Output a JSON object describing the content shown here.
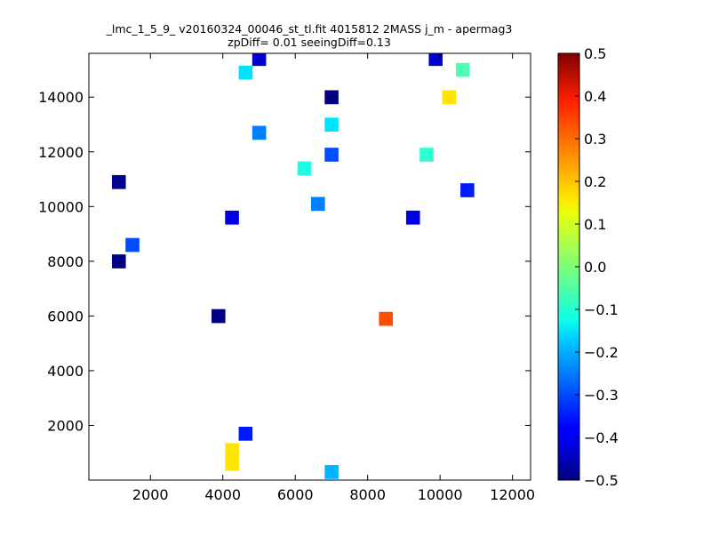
{
  "chart_data": {
    "type": "heatmap",
    "title_line1": "_lmc_1_5_9_ v20160324_00046_st_tl.fit 4015812 2MASS j_m - apermag3",
    "title_line2": "zpDiff= 0.01 seeingDiff=0.13",
    "xlabel": "",
    "ylabel": "",
    "colormap": "jet",
    "xlim": [
      300,
      12500
    ],
    "ylim": [
      0,
      15600
    ],
    "bin_width": 375,
    "bin_height": 500,
    "x_ticks": [
      2000,
      4000,
      6000,
      8000,
      10000,
      12000
    ],
    "x_tick_labels": [
      "2000",
      "4000",
      "6000",
      "8000",
      "10000",
      "12000"
    ],
    "y_ticks": [
      2000,
      4000,
      6000,
      8000,
      10000,
      12000,
      14000
    ],
    "y_tick_labels": [
      "2000",
      "4000",
      "6000",
      "8000",
      "10000",
      "12000",
      "14000"
    ],
    "colorbar": {
      "vmin": -0.5,
      "vmax": 0.5,
      "ticks": [
        -0.5,
        -0.4,
        -0.3,
        -0.2,
        -0.1,
        0.0,
        0.1,
        0.2,
        0.3,
        0.4,
        0.5
      ],
      "tick_labels": [
        "−0.5",
        "−0.4",
        "−0.3",
        "−0.2",
        "−0.1",
        "0.0",
        "0.1",
        "0.2",
        "0.3",
        "0.4",
        "0.5"
      ]
    },
    "cells": [
      {
        "x": 1125,
        "y": 10900,
        "v": -0.48
      },
      {
        "x": 1125,
        "y": 8000,
        "v": -0.5
      },
      {
        "x": 1500,
        "y": 8600,
        "v": -0.3
      },
      {
        "x": 3875,
        "y": 6000,
        "v": -0.5
      },
      {
        "x": 4250,
        "y": 9600,
        "v": -0.4
      },
      {
        "x": 4625,
        "y": 14900,
        "v": -0.15
      },
      {
        "x": 5000,
        "y": 12700,
        "v": -0.25
      },
      {
        "x": 5000,
        "y": 15400,
        "v": -0.42
      },
      {
        "x": 6625,
        "y": 10100,
        "v": -0.25
      },
      {
        "x": 7000,
        "y": 14000,
        "v": -0.5
      },
      {
        "x": 7000,
        "y": 13000,
        "v": -0.15
      },
      {
        "x": 7000,
        "y": 11900,
        "v": -0.3
      },
      {
        "x": 6250,
        "y": 11400,
        "v": -0.1
      },
      {
        "x": 8500,
        "y": 5900,
        "v": 0.3
      },
      {
        "x": 9250,
        "y": 9600,
        "v": -0.4
      },
      {
        "x": 9625,
        "y": 11900,
        "v": -0.08
      },
      {
        "x": 9875,
        "y": 15400,
        "v": -0.42
      },
      {
        "x": 10625,
        "y": 15000,
        "v": -0.05
      },
      {
        "x": 10250,
        "y": 14000,
        "v": 0.15
      },
      {
        "x": 10750,
        "y": 10600,
        "v": -0.35
      },
      {
        "x": 4250,
        "y": 1100,
        "v": 0.15
      },
      {
        "x": 4250,
        "y": 600,
        "v": 0.15
      },
      {
        "x": 4625,
        "y": 1700,
        "v": -0.35
      },
      {
        "x": 7000,
        "y": 300,
        "v": -0.2
      }
    ]
  }
}
